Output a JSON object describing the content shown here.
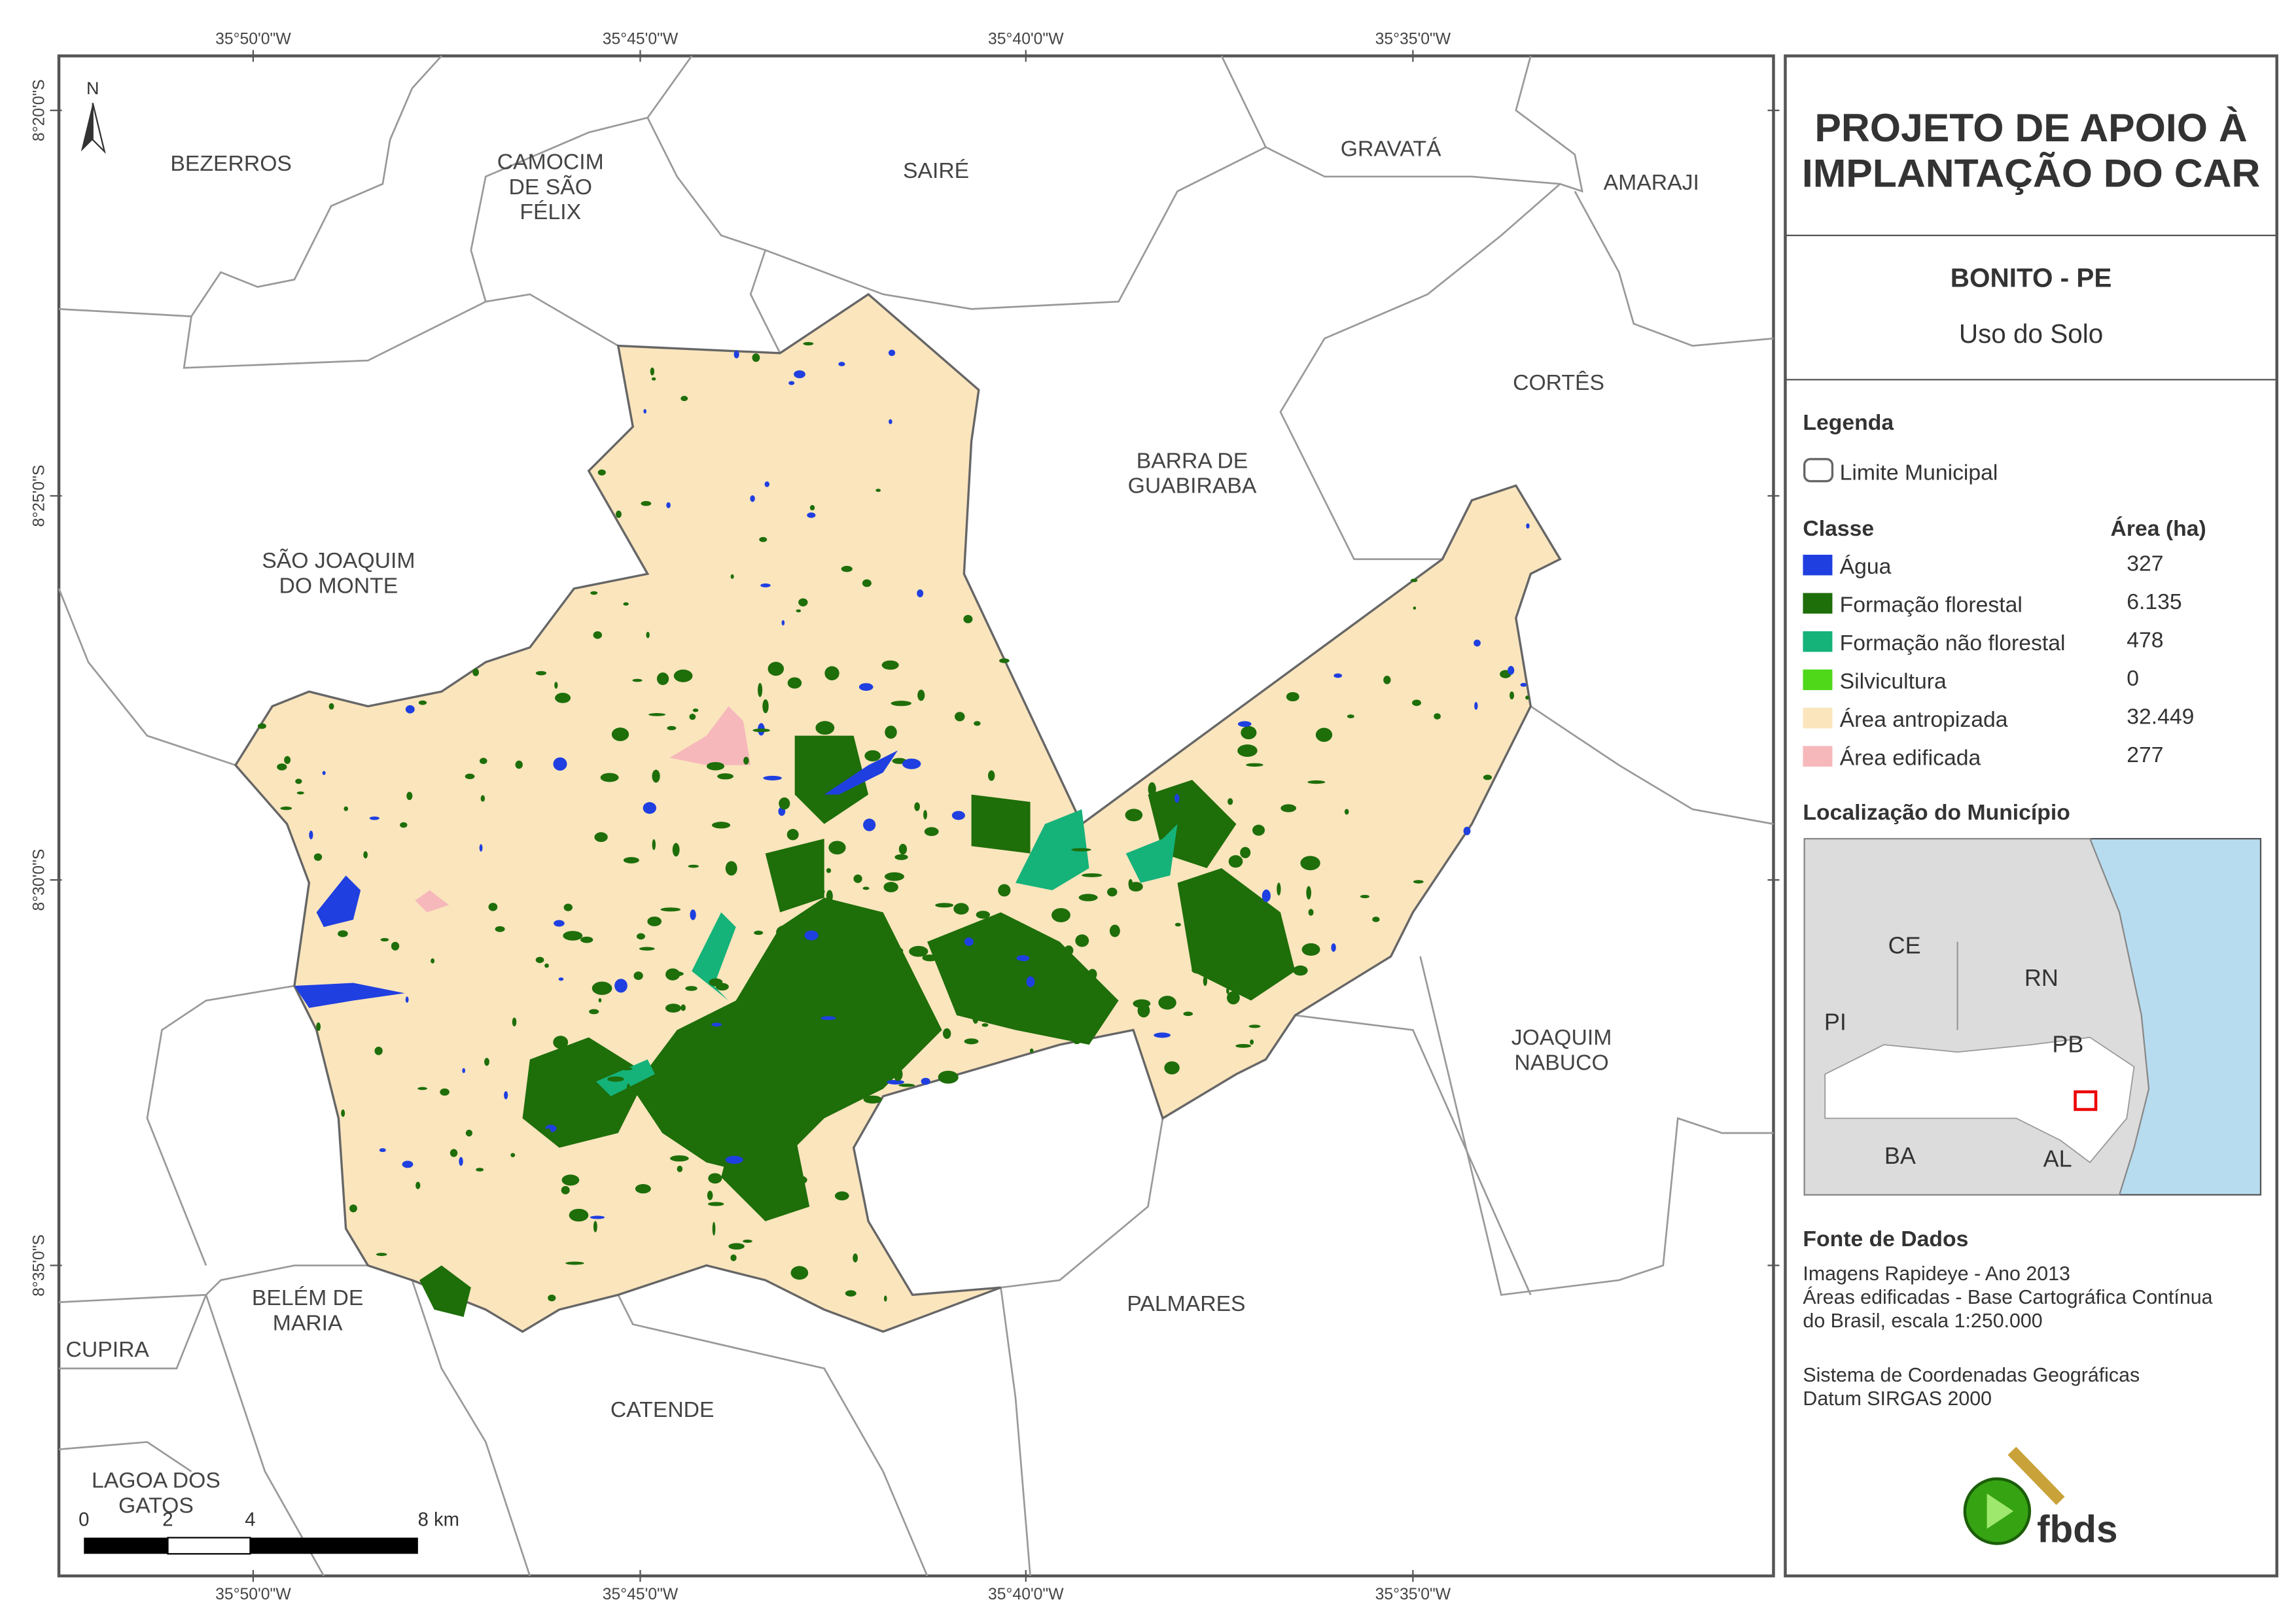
{
  "map": {
    "graticule": {
      "longitudes": [
        "35°50'0\"W",
        "35°45'0\"W",
        "35°40'0\"W",
        "35°35'0\"W"
      ],
      "latitudes": [
        "8°20'0\"S",
        "8°25'0\"S",
        "8°30'0\"S",
        "8°35'0\"S"
      ]
    },
    "north_arrow": "N",
    "municipalities": [
      {
        "lines": [
          "BEZERROS"
        ]
      },
      {
        "lines": [
          "CAMOCIM",
          "DE SÃO",
          "FÉLIX"
        ]
      },
      {
        "lines": [
          "SAIRÉ"
        ]
      },
      {
        "lines": [
          "GRAVATÁ"
        ]
      },
      {
        "lines": [
          "AMARAJI"
        ]
      },
      {
        "lines": [
          "CORTÊS"
        ]
      },
      {
        "lines": [
          "BARRA DE",
          "GUABIRABA"
        ]
      },
      {
        "lines": [
          "SÃO JOAQUIM",
          "DO MONTE"
        ]
      },
      {
        "lines": [
          "JOAQUIM",
          "NABUCO"
        ]
      },
      {
        "lines": [
          "BELÉM DE",
          "MARIA"
        ]
      },
      {
        "lines": [
          "CUPIRA"
        ]
      },
      {
        "lines": [
          "PALMARES"
        ]
      },
      {
        "lines": [
          "CATENDE"
        ]
      },
      {
        "lines": [
          "LAGOA DOS",
          "GATOS"
        ]
      }
    ],
    "scale_bar": {
      "labels": [
        "0",
        "2",
        "4",
        "8 km"
      ]
    }
  },
  "panel": {
    "title": [
      "PROJETO DE APOIO À",
      "IMPLANTAÇÃO DO CAR"
    ],
    "place": "BONITO - PE",
    "subject": "Uso do Solo",
    "legend": {
      "heading": "Legenda",
      "boundary": "Limite Municipal",
      "class_header": "Classe",
      "area_header": "Área (ha)",
      "classes": [
        {
          "name": "Água",
          "color": "#1f3fe0",
          "area": "327"
        },
        {
          "name": "Formação florestal",
          "color": "#1e6e0a",
          "area": "6.135"
        },
        {
          "name": "Formação não florestal",
          "color": "#15b27a",
          "area": "478"
        },
        {
          "name": "Silvicultura",
          "color": "#4fd81a",
          "area": "0"
        },
        {
          "name": "Área antropizada",
          "color": "#fae5bd",
          "area": "32.449"
        },
        {
          "name": "Área edificada",
          "color": "#f6b8bb",
          "area": "277"
        }
      ]
    },
    "location": {
      "heading": "Localização do Município",
      "labels": [
        "CE",
        "RN",
        "PI",
        "PB",
        "BA",
        "AL"
      ]
    },
    "sources": {
      "heading": "Fonte de Dados",
      "block1": [
        "Imagens Rapideye - Ano 2013",
        "Áreas edificadas - Base Cartográfica Contínua",
        "do Brasil, escala 1:250.000"
      ],
      "block2": [
        "Sistema de Coordenadas Geográficas",
        "Datum SIRGAS 2000"
      ]
    },
    "logo": "fbds"
  }
}
